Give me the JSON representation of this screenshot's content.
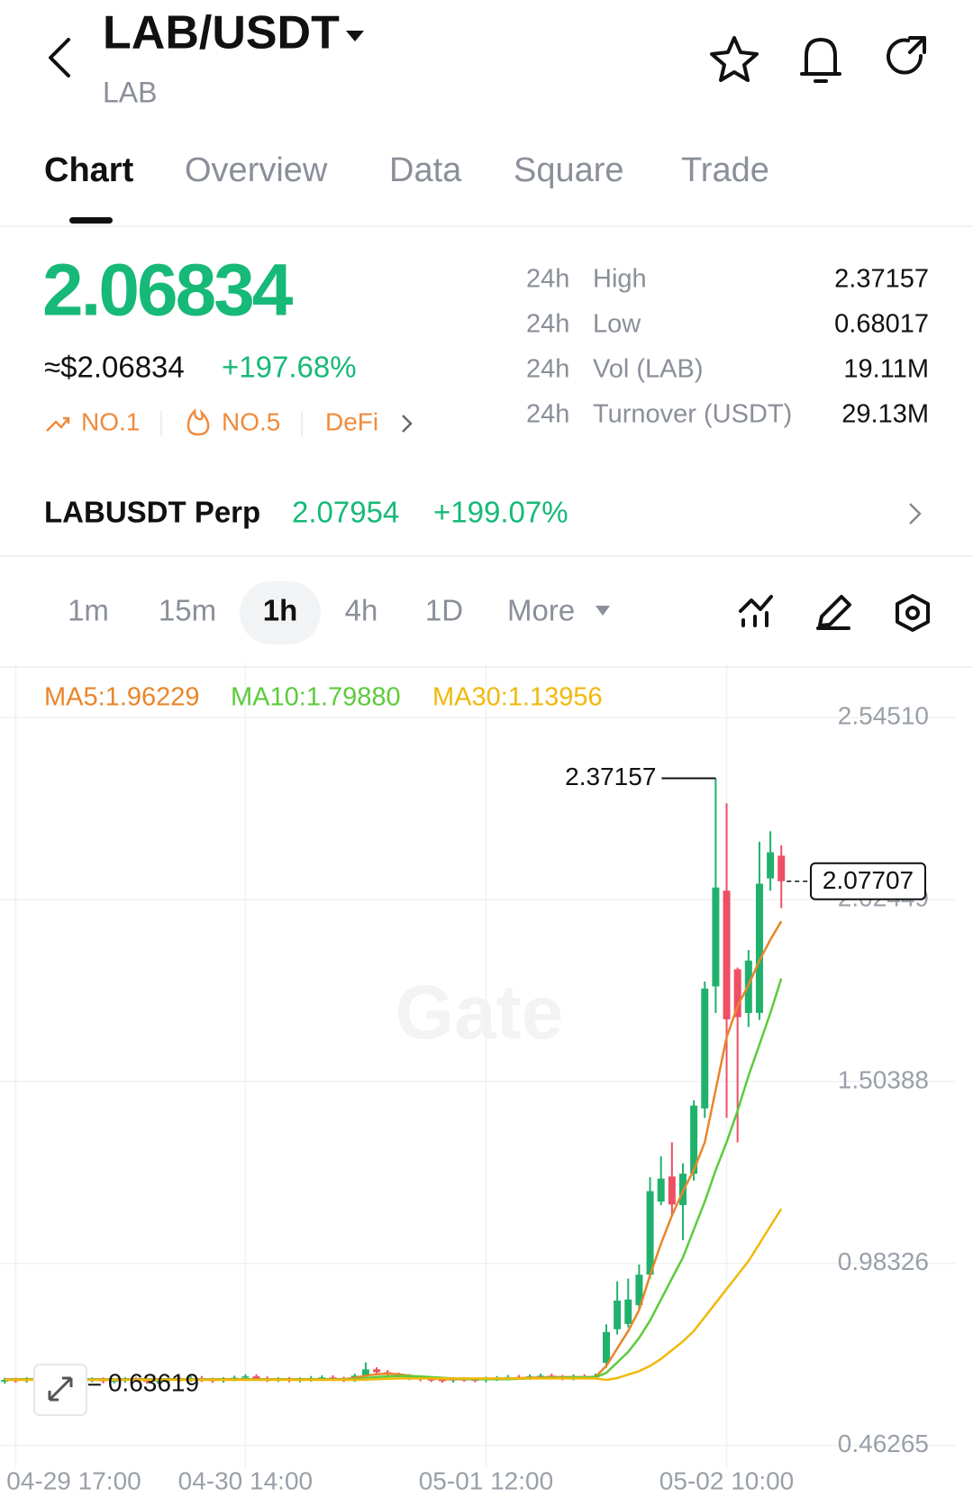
{
  "header": {
    "title": "LAB/USDT",
    "subtitle": "LAB"
  },
  "tabs": [
    "Chart",
    "Overview",
    "Data",
    "Square",
    "Trade"
  ],
  "ticker": {
    "price": "2.06834",
    "fiat": "≈$2.06834",
    "change": "+197.68%",
    "tags": [
      "NO.1",
      "NO.5",
      "DeFi"
    ]
  },
  "stats": [
    {
      "period": "24h",
      "label": "High",
      "value": "2.37157"
    },
    {
      "period": "24h",
      "label": "Low",
      "value": "0.68017"
    },
    {
      "period": "24h",
      "label": "Vol (LAB)",
      "value": "19.11M"
    },
    {
      "period": "24h",
      "label": "Turnover (USDT)",
      "value": "29.13M"
    }
  ],
  "perp": {
    "name": "LABUSDT Perp",
    "price": "2.07954",
    "change": "+199.07%"
  },
  "intervals": [
    "1m",
    "15m",
    "1h",
    "4h",
    "1D",
    "More"
  ],
  "watermark": "Gate",
  "chart_data": {
    "type": "candlestick",
    "up_color": "#20b26c",
    "down_color": "#ef4f63",
    "grid": true,
    "categories": [
      null,
      "04-29 17:00",
      null,
      null,
      null,
      null,
      null,
      null,
      null,
      null,
      null,
      null,
      null,
      null,
      null,
      null,
      null,
      null,
      null,
      null,
      null,
      null,
      "04-30 14:00",
      null,
      null,
      null,
      null,
      null,
      null,
      null,
      null,
      null,
      null,
      null,
      null,
      null,
      null,
      null,
      null,
      null,
      null,
      null,
      null,
      null,
      "05-01 12:00",
      null,
      null,
      null,
      null,
      null,
      null,
      null,
      null,
      null,
      null,
      null,
      null,
      null,
      null,
      null,
      null,
      null,
      null,
      null,
      null,
      null,
      "05-02 10:00",
      null,
      null,
      null,
      null,
      null
    ],
    "open": [
      0.645,
      0.65,
      0.648,
      0.652,
      0.647,
      0.655,
      0.66,
      0.653,
      0.649,
      0.651,
      0.646,
      0.648,
      0.652,
      0.65,
      0.645,
      0.649,
      0.653,
      0.651,
      0.655,
      0.65,
      0.648,
      0.652,
      0.656,
      0.66,
      0.654,
      0.65,
      0.652,
      0.649,
      0.651,
      0.655,
      0.657,
      0.653,
      0.65,
      0.662,
      0.68,
      0.672,
      0.665,
      0.66,
      0.655,
      0.652,
      0.65,
      0.648,
      0.652,
      0.651,
      0.649,
      0.653,
      0.655,
      0.658,
      0.656,
      0.66,
      0.662,
      0.658,
      0.655,
      0.66,
      0.658,
      0.699,
      0.795,
      0.81,
      0.864,
      0.951,
      1.16,
      1.232,
      1.15,
      1.24,
      1.427,
      1.776,
      2.05,
      1.825,
      1.7,
      1.7,
      2.085,
      2.15
    ],
    "high": [
      0.656,
      0.656,
      0.658,
      0.658,
      0.661,
      0.666,
      0.666,
      0.659,
      0.657,
      0.657,
      0.654,
      0.658,
      0.658,
      0.656,
      0.655,
      0.659,
      0.659,
      0.661,
      0.661,
      0.656,
      0.658,
      0.662,
      0.666,
      0.666,
      0.66,
      0.658,
      0.658,
      0.657,
      0.661,
      0.663,
      0.663,
      0.659,
      0.668,
      0.7,
      0.686,
      0.678,
      0.671,
      0.666,
      0.661,
      0.658,
      0.656,
      0.658,
      0.658,
      0.657,
      0.659,
      0.661,
      0.664,
      0.664,
      0.666,
      0.668,
      0.668,
      0.664,
      0.666,
      0.666,
      0.668,
      0.809,
      0.932,
      0.94,
      0.98,
      1.23,
      1.29,
      1.33,
      1.27,
      1.45,
      1.79,
      2.37157,
      2.3,
      1.83,
      1.88,
      2.19,
      2.22,
      2.18
    ],
    "low": [
      0.639,
      0.642,
      0.642,
      0.641,
      0.63619,
      0.649,
      0.647,
      0.643,
      0.643,
      0.64,
      0.64,
      0.642,
      0.644,
      0.639,
      0.639,
      0.643,
      0.645,
      0.645,
      0.644,
      0.642,
      0.642,
      0.646,
      0.65,
      0.648,
      0.644,
      0.644,
      0.643,
      0.643,
      0.645,
      0.649,
      0.647,
      0.644,
      0.644,
      0.656,
      0.666,
      0.659,
      0.654,
      0.649,
      0.646,
      0.644,
      0.642,
      0.642,
      0.645,
      0.643,
      0.643,
      0.647,
      0.649,
      0.65,
      0.65,
      0.654,
      0.652,
      0.649,
      0.649,
      0.652,
      0.652,
      0.685,
      0.78,
      0.8,
      0.85,
      0.94,
      1.15,
      1.12,
      1.05,
      1.22,
      1.4,
      1.7,
      1.4,
      1.33,
      1.66,
      1.68,
      2.05,
      2.0
    ],
    "close": [
      0.65,
      0.648,
      0.652,
      0.647,
      0.655,
      0.66,
      0.653,
      0.649,
      0.651,
      0.646,
      0.648,
      0.652,
      0.65,
      0.645,
      0.649,
      0.653,
      0.651,
      0.655,
      0.65,
      0.648,
      0.652,
      0.656,
      0.66,
      0.654,
      0.65,
      0.652,
      0.649,
      0.651,
      0.655,
      0.657,
      0.653,
      0.65,
      0.662,
      0.68,
      0.672,
      0.665,
      0.66,
      0.655,
      0.652,
      0.65,
      0.648,
      0.652,
      0.651,
      0.649,
      0.653,
      0.655,
      0.658,
      0.656,
      0.66,
      0.662,
      0.658,
      0.655,
      0.66,
      0.658,
      0.662,
      0.787,
      0.877,
      0.88,
      0.951,
      1.19,
      1.226,
      1.152,
      1.24,
      1.435,
      1.77,
      2.059,
      1.682,
      1.688,
      1.85,
      2.07,
      2.16,
      2.07707
    ],
    "series": [
      {
        "name": "MA5:1.96229",
        "color": "#e8862a",
        "values": [
          0.652,
          0.652,
          0.652,
          0.652,
          0.652,
          0.652,
          0.652,
          0.652,
          0.652,
          0.652,
          0.652,
          0.652,
          0.652,
          0.652,
          0.652,
          0.652,
          0.652,
          0.652,
          0.652,
          0.652,
          0.652,
          0.652,
          0.652,
          0.652,
          0.652,
          0.652,
          0.652,
          0.652,
          0.652,
          0.652,
          0.652,
          0.652,
          0.656,
          0.662,
          0.666,
          0.668,
          0.666,
          0.662,
          0.658,
          0.654,
          0.652,
          0.652,
          0.652,
          0.652,
          0.652,
          0.652,
          0.654,
          0.655,
          0.656,
          0.657,
          0.658,
          0.658,
          0.658,
          0.658,
          0.658,
          0.69,
          0.74,
          0.79,
          0.85,
          0.95,
          1.04,
          1.12,
          1.19,
          1.25,
          1.33,
          1.48,
          1.63,
          1.72,
          1.78,
          1.85,
          1.91,
          1.96229
        ]
      },
      {
        "name": "MA10:1.79880",
        "color": "#5ccb3c",
        "values": [
          0.651,
          0.651,
          0.651,
          0.651,
          0.651,
          0.651,
          0.651,
          0.651,
          0.651,
          0.651,
          0.651,
          0.651,
          0.651,
          0.651,
          0.651,
          0.651,
          0.651,
          0.651,
          0.651,
          0.651,
          0.651,
          0.651,
          0.651,
          0.651,
          0.651,
          0.651,
          0.651,
          0.651,
          0.651,
          0.651,
          0.651,
          0.651,
          0.652,
          0.655,
          0.658,
          0.66,
          0.661,
          0.661,
          0.66,
          0.658,
          0.656,
          0.654,
          0.653,
          0.652,
          0.652,
          0.652,
          0.652,
          0.653,
          0.654,
          0.655,
          0.656,
          0.656,
          0.657,
          0.657,
          0.657,
          0.67,
          0.7,
          0.73,
          0.77,
          0.82,
          0.88,
          0.94,
          1.0,
          1.08,
          1.16,
          1.25,
          1.33,
          1.42,
          1.52,
          1.61,
          1.7,
          1.7988
        ]
      },
      {
        "name": "MA30:1.13956",
        "color": "#f0b90b",
        "values": [
          0.65,
          0.65,
          0.65,
          0.65,
          0.65,
          0.65,
          0.65,
          0.65,
          0.65,
          0.65,
          0.65,
          0.65,
          0.65,
          0.65,
          0.65,
          0.65,
          0.65,
          0.65,
          0.65,
          0.65,
          0.65,
          0.65,
          0.65,
          0.65,
          0.65,
          0.65,
          0.65,
          0.65,
          0.65,
          0.65,
          0.65,
          0.65,
          0.65,
          0.651,
          0.652,
          0.653,
          0.654,
          0.654,
          0.654,
          0.654,
          0.654,
          0.654,
          0.654,
          0.654,
          0.654,
          0.654,
          0.654,
          0.654,
          0.654,
          0.654,
          0.654,
          0.654,
          0.654,
          0.654,
          0.654,
          0.65,
          0.655,
          0.665,
          0.675,
          0.69,
          0.71,
          0.735,
          0.76,
          0.79,
          0.83,
          0.87,
          0.91,
          0.95,
          0.99,
          1.04,
          1.09,
          1.13956
        ]
      }
    ],
    "ylim": [
      0.41,
      2.676
    ],
    "yticks": [
      0.46265,
      0.98326,
      1.50388,
      2.02449,
      {
        "value": 2.5451,
        "label": "2.54510"
      }
    ],
    "max_marker": 2.37157,
    "min_marker": 0.63619,
    "last_price": 2.07707
  }
}
